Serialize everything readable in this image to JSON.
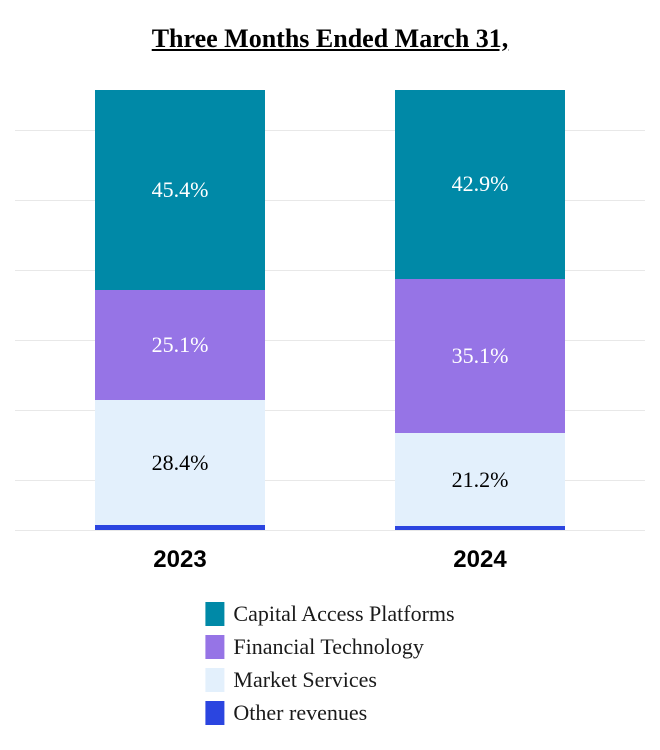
{
  "chart_data": {
    "type": "bar",
    "subtype": "stacked-100-percent",
    "title": "Three Months Ended March 31,",
    "categories": [
      "2023",
      "2024"
    ],
    "series": [
      {
        "name": "Capital Access Platforms",
        "color": "#0089a7",
        "values": [
          45.4,
          42.9
        ],
        "labels": [
          "45.4%",
          "42.9%"
        ],
        "label_color": "#ffffff"
      },
      {
        "name": "Financial Technology",
        "color": "#9674e6",
        "values": [
          25.1,
          35.1
        ],
        "labels": [
          "25.1%",
          "35.1%"
        ],
        "label_color": "#ffffff"
      },
      {
        "name": "Market Services",
        "color": "#e3f0fc",
        "values": [
          28.4,
          21.2
        ],
        "labels": [
          "28.4%",
          "21.2%"
        ],
        "label_color": "#000000"
      },
      {
        "name": "Other revenues",
        "color": "#2b45e0",
        "values": [
          1.1,
          0.8
        ],
        "labels": [
          "",
          ""
        ],
        "label_color": "#ffffff"
      }
    ],
    "ylim": [
      0,
      100
    ],
    "grid": true,
    "legend_position": "bottom",
    "stack_order_top_to_bottom": [
      "Capital Access Platforms",
      "Financial Technology",
      "Market Services",
      "Other revenues"
    ]
  }
}
